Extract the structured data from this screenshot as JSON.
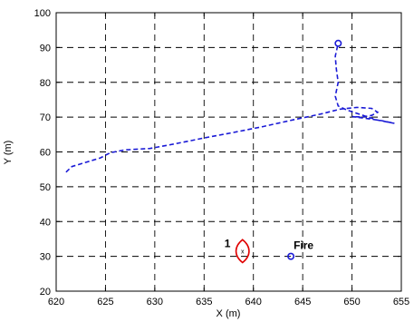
{
  "chart_data": {
    "type": "line",
    "title": "",
    "xlabel": "X (m)",
    "ylabel": "Y (m)",
    "xlim": [
      620,
      655
    ],
    "ylim": [
      20,
      100
    ],
    "x_ticks": [
      620,
      625,
      630,
      635,
      640,
      645,
      650,
      655
    ],
    "y_ticks": [
      20,
      30,
      40,
      50,
      60,
      70,
      80,
      90,
      100
    ],
    "grid": true,
    "colors": {
      "trajectory": "#1a1ad6",
      "contour": "#e00000",
      "axes": "#000000"
    },
    "series": [
      {
        "style": "dashed",
        "color": "#1a1ad6",
        "points": [
          [
            621.0,
            54.2
          ],
          [
            621.6,
            55.8
          ],
          [
            623.0,
            57.0
          ],
          [
            624.5,
            58.3
          ],
          [
            625.5,
            59.8
          ],
          [
            627.0,
            60.6
          ],
          [
            629.5,
            61.0
          ],
          [
            632.0,
            62.3
          ],
          [
            635.0,
            64.0
          ],
          [
            638.0,
            65.6
          ],
          [
            641.0,
            67.3
          ],
          [
            644.0,
            69.2
          ],
          [
            647.0,
            71.0
          ],
          [
            648.8,
            72.3
          ],
          [
            650.5,
            72.8
          ],
          [
            652.0,
            72.5
          ],
          [
            652.6,
            71.4
          ],
          [
            652.0,
            70.5
          ],
          [
            651.0,
            70.0
          ],
          [
            650.0,
            70.2
          ],
          [
            651.5,
            69.6
          ],
          [
            653.0,
            69.0
          ],
          [
            654.3,
            68.2
          ],
          [
            652.5,
            69.2
          ],
          [
            651.0,
            70.6
          ],
          [
            649.5,
            72.0
          ],
          [
            648.6,
            73.2
          ],
          [
            648.3,
            76.0
          ],
          [
            648.6,
            80.0
          ],
          [
            648.4,
            84.0
          ],
          [
            648.3,
            87.5
          ],
          [
            648.6,
            91.2
          ]
        ],
        "start_marker": [
          648.6,
          91.2
        ]
      }
    ],
    "markers": [
      {
        "label": "Fire",
        "x": 643.8,
        "y": 30.0,
        "shape": "circle",
        "color": "#1a1ad6"
      }
    ],
    "contours": [
      {
        "label": "1",
        "center_mark": "x",
        "cx": 638.9,
        "cy": 31.5,
        "rx": 0.55,
        "ry": 3.3,
        "color": "#e00000"
      }
    ]
  }
}
